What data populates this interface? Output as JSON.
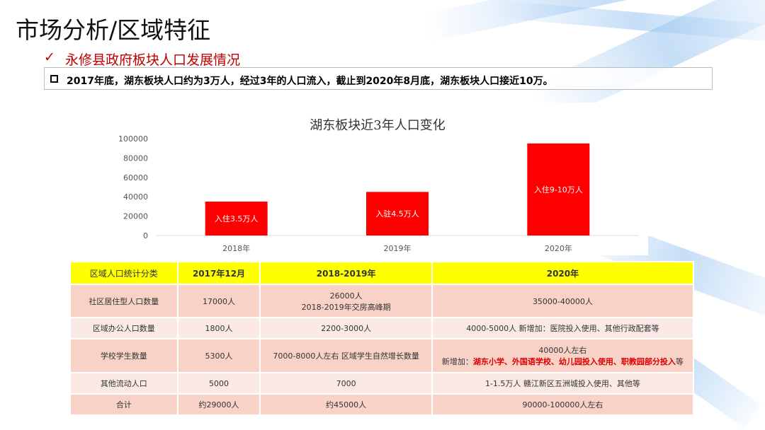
{
  "slide": {
    "title": "市场分析/区域特征",
    "subtitle_check": "✓",
    "subtitle": "永修县政府板块人口发展情况",
    "note": "2017年底，湖东板块人口约为3万人，经过3年的人口流入，截止到2020年8月底，湖东板块人口接近10万。"
  },
  "chart_data": {
    "type": "bar",
    "title": "湖东板块近3年人口变化",
    "categories": [
      "2018年",
      "2019年",
      "2020年"
    ],
    "values": [
      35000,
      45000,
      95000
    ],
    "data_labels": [
      "入住3.5万人",
      "入驻4.5万人",
      "入住9-10万人"
    ],
    "yticks": [
      "0",
      "20000",
      "40000",
      "60000",
      "80000",
      "100000"
    ],
    "ylim": [
      0,
      100000
    ],
    "bar_color": "#ff0000",
    "grid": false,
    "legend": "none"
  },
  "table": {
    "headers": [
      "区域人口统计分类",
      "2017年12月",
      "2018-2019年",
      "2020年"
    ],
    "rows": [
      {
        "cells": [
          "社区居住型人口数量",
          "17000人",
          "26000人",
          "35000-40000人"
        ],
        "extra2": "2018-2019年交房高峰期"
      },
      {
        "cells": [
          "区域办公人口数量",
          "1800人",
          "2200-3000人",
          "4000-5000人  新增加：医院投入使用、其他行政配套等"
        ]
      },
      {
        "cells": [
          "学校学生数量",
          "5300人",
          "7000-8000人左右   区域学生自然增长数量",
          "40000人左右"
        ],
        "extra3_prefix": "新增加：",
        "extra3_red": "湖东小学、外国语学校、幼儿园投入使用、职教园部分投入",
        "extra3_suffix": "等"
      },
      {
        "cells": [
          "其他流动人口",
          "5000",
          "7000",
          "1-1.5万人   赣江新区五洲城投入使用、其他等"
        ]
      },
      {
        "cells": [
          "合计",
          "约29000人",
          "约45000人",
          "90000-100000人左右"
        ]
      }
    ]
  }
}
